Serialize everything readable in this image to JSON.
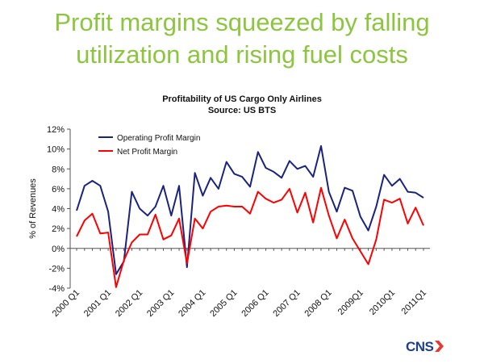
{
  "slide": {
    "title_line1": "Profit margins squeezed by falling",
    "title_line2": "utilization and rising fuel costs"
  },
  "logo": {
    "text": "CNS"
  },
  "colors": {
    "title": "#8cc63f",
    "operating": "#1a237e",
    "net": "#ff0000",
    "logo": "#1c3f8f",
    "logo_arrow": "#e53935"
  },
  "chart_data": {
    "type": "line",
    "title": "Profitability of US Cargo Only Airlines",
    "subtitle": "Source: US BTS",
    "ylabel": "% of Revenues",
    "xlabel": "",
    "ylim": [
      -4,
      12
    ],
    "y_ticks": [
      "-4%",
      "-2%",
      "0%",
      "2%",
      "4%",
      "6%",
      "8%",
      "10%",
      "12%"
    ],
    "x_tick_labels": [
      "2000 Q1",
      "2001 Q1",
      "2002 Q1",
      "2003 Q1",
      "2004 Q1",
      "2005 Q1",
      "2006 Q1",
      "2007 Q1",
      "2008 Q1",
      "2009Q1",
      "2010Q1",
      "2011Q1"
    ],
    "x_tick_quarters": [
      0,
      4,
      8,
      12,
      16,
      20,
      24,
      28,
      32,
      36,
      40,
      44
    ],
    "legend": "top-left",
    "grid": false,
    "series": [
      {
        "name": "Operating Profit Margin",
        "values": [
          3.8,
          6.3,
          6.8,
          6.3,
          3.7,
          -2.6,
          -1.3,
          5.7,
          4.0,
          3.3,
          4.2,
          6.3,
          3.3,
          6.3,
          -1.9,
          7.6,
          5.3,
          7.1,
          6.0,
          8.7,
          7.5,
          7.2,
          6.2,
          9.7,
          8.1,
          7.7,
          7.1,
          8.8,
          8.0,
          8.3,
          7.2,
          10.3,
          5.7,
          3.7,
          6.1,
          5.8,
          3.2,
          1.8,
          4.2,
          7.4,
          6.3,
          7.0,
          5.7,
          5.6,
          5.1
        ]
      },
      {
        "name": "Net Profit Margin",
        "values": [
          1.2,
          2.8,
          3.5,
          1.5,
          1.6,
          -3.9,
          -1.2,
          0.6,
          1.4,
          1.4,
          3.4,
          0.9,
          1.3,
          3.0,
          -1.5,
          3.0,
          2.0,
          3.7,
          4.2,
          4.3,
          4.2,
          4.2,
          3.5,
          5.7,
          5.0,
          4.6,
          4.9,
          6.0,
          3.6,
          5.6,
          2.6,
          6.1,
          3.3,
          1.0,
          2.9,
          1.0,
          -0.3,
          -1.6,
          0.9,
          4.9,
          4.6,
          5.0,
          2.5,
          4.1,
          2.3
        ]
      }
    ]
  }
}
